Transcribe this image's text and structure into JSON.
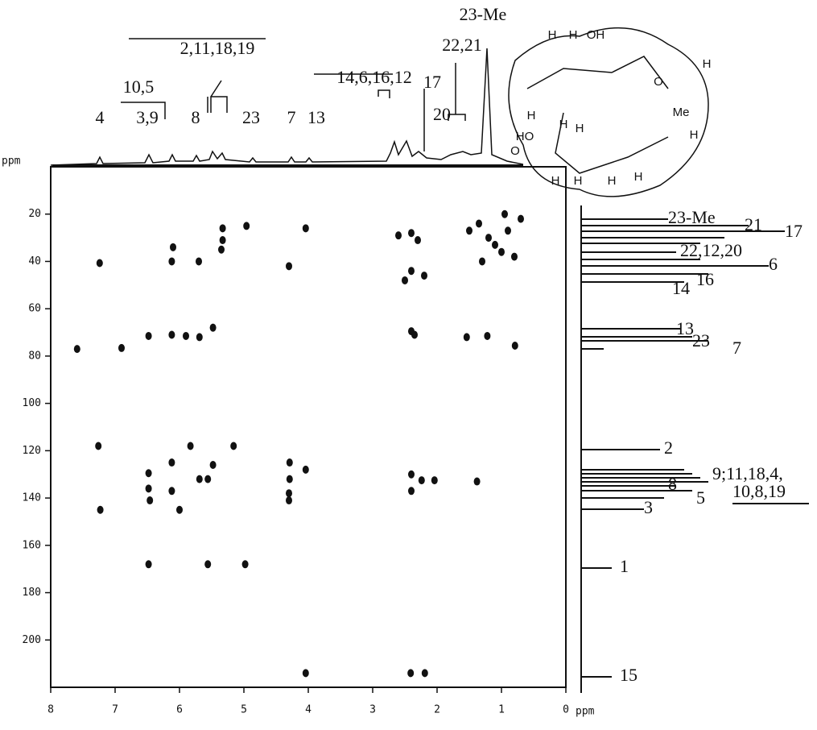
{
  "chart_data": {
    "type": "scatter",
    "x_label": "ppm",
    "y_label": "ppm",
    "xlim": [
      8,
      0
    ],
    "xticks": [
      8,
      7,
      6,
      5,
      4,
      3,
      2,
      1,
      0
    ],
    "ylim": [
      0,
      220
    ],
    "yticks": [
      20,
      40,
      60,
      80,
      100,
      120,
      140,
      160,
      180,
      200
    ],
    "color": "#111111",
    "x": [
      7.24,
      6.12,
      5.7,
      4.3,
      6.1,
      5.35,
      5.33,
      5.33,
      4.96,
      4.04,
      2.5,
      2.4,
      2.3,
      2.4,
      2.2,
      2.6,
      1.5,
      1.35,
      1.2,
      1.1,
      1.0,
      0.9,
      0.8,
      0.7,
      1.3,
      0.95,
      7.59,
      6.9,
      6.48,
      6.12,
      5.9,
      5.69,
      5.48,
      2.4,
      2.35,
      1.54,
      1.22,
      0.79,
      7.26,
      5.83,
      5.16,
      6.48,
      6.12,
      5.69,
      5.56,
      5.48,
      4.29,
      4.04,
      4.29,
      2.4,
      2.24,
      2.04,
      1.38,
      6.48,
      6.12,
      4.3,
      6.46,
      7.23,
      6.0,
      4.3,
      2.4,
      6.48,
      5.56,
      4.98,
      4.04,
      2.41,
      2.19
    ],
    "values": [
      40.7,
      40,
      40,
      42,
      34,
      35,
      31,
      26,
      25,
      26,
      48,
      28,
      31,
      44,
      46,
      29,
      27,
      24,
      30,
      33,
      36,
      27,
      38,
      22,
      40,
      20,
      77,
      76.6,
      71.5,
      71,
      71.5,
      72,
      68,
      69.5,
      71,
      72,
      71.5,
      75.6,
      118,
      118,
      118,
      129.5,
      125,
      132,
      132,
      126,
      125,
      128,
      132,
      130,
      132.5,
      132.5,
      133,
      136,
      137,
      138,
      141,
      145,
      145,
      141,
      137,
      168,
      168,
      168,
      214,
      214,
      214
    ],
    "top_labels": [
      "4",
      "3,9",
      "10,5",
      "8",
      "2,11,18,19",
      "23",
      "7",
      "13",
      "14,6,16,12",
      "17",
      "20",
      "22,21",
      "23-Me"
    ],
    "right_labels": [
      "23-Me",
      "21",
      "17",
      "22,12,20",
      "6",
      "16",
      "14",
      "13",
      "23",
      "7",
      "2",
      "9;11,18,4,",
      "10,8,19",
      "8",
      "5",
      "3",
      "1",
      "15"
    ],
    "structure_labels": [
      "H",
      "H",
      "OH",
      "H",
      "O",
      "H",
      "HO",
      "H",
      "O",
      "H",
      "H",
      "H",
      "H",
      "H",
      "Me",
      "H"
    ]
  }
}
